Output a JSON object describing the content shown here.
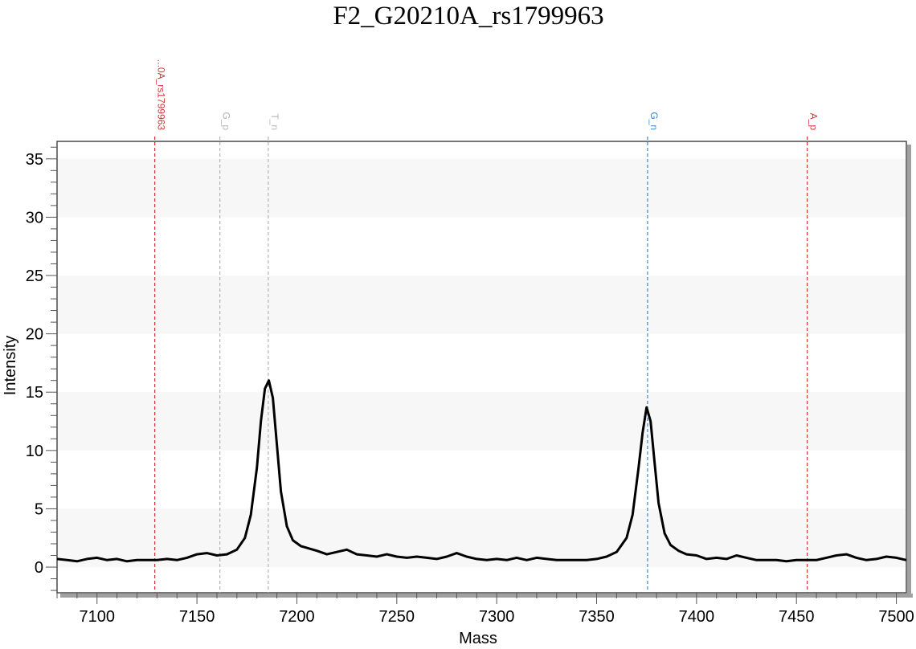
{
  "chart_data": {
    "type": "line",
    "title": "F2_G20210A_rs1799963",
    "xlabel": "Mass",
    "ylabel": "Intensity",
    "xlim": [
      7080,
      7505
    ],
    "ylim": [
      -2.2,
      36.5
    ],
    "x_ticks": [
      7100,
      7150,
      7200,
      7250,
      7300,
      7350,
      7400,
      7450,
      7500
    ],
    "y_ticks": [
      0,
      5,
      10,
      15,
      20,
      25,
      30,
      35
    ],
    "band_shading": true,
    "series": [
      {
        "color": "#000000",
        "x": [
          7080,
          7085,
          7090,
          7095,
          7100,
          7105,
          7110,
          7115,
          7120,
          7125,
          7130,
          7135,
          7140,
          7145,
          7150,
          7155,
          7160,
          7165,
          7170,
          7174,
          7177,
          7180,
          7182,
          7184,
          7186,
          7188,
          7190,
          7192,
          7195,
          7198,
          7202,
          7206,
          7210,
          7215,
          7220,
          7225,
          7230,
          7235,
          7240,
          7245,
          7250,
          7255,
          7260,
          7265,
          7270,
          7275,
          7280,
          7285,
          7290,
          7295,
          7300,
          7305,
          7310,
          7315,
          7320,
          7325,
          7330,
          7335,
          7340,
          7345,
          7350,
          7355,
          7360,
          7365,
          7368,
          7371,
          7373,
          7375,
          7377,
          7379,
          7381,
          7384,
          7387,
          7391,
          7395,
          7400,
          7405,
          7410,
          7415,
          7420,
          7425,
          7430,
          7435,
          7440,
          7445,
          7450,
          7455,
          7460,
          7465,
          7470,
          7475,
          7480,
          7485,
          7490,
          7495,
          7500,
          7505
        ],
        "y": [
          0.7,
          0.6,
          0.5,
          0.7,
          0.8,
          0.6,
          0.7,
          0.5,
          0.6,
          0.6,
          0.6,
          0.7,
          0.6,
          0.8,
          1.1,
          1.2,
          1.0,
          1.1,
          1.5,
          2.5,
          4.5,
          8.5,
          12.5,
          15.3,
          16.0,
          14.5,
          10.5,
          6.5,
          3.5,
          2.3,
          1.8,
          1.6,
          1.4,
          1.1,
          1.3,
          1.5,
          1.1,
          1.0,
          0.9,
          1.1,
          0.9,
          0.8,
          0.9,
          0.8,
          0.7,
          0.9,
          1.2,
          0.9,
          0.7,
          0.6,
          0.7,
          0.6,
          0.8,
          0.6,
          0.8,
          0.7,
          0.6,
          0.6,
          0.6,
          0.6,
          0.7,
          0.9,
          1.3,
          2.5,
          4.5,
          8.5,
          11.5,
          13.7,
          12.5,
          9.0,
          5.5,
          2.9,
          1.9,
          1.4,
          1.1,
          1.0,
          0.7,
          0.8,
          0.7,
          1.0,
          0.8,
          0.6,
          0.6,
          0.6,
          0.5,
          0.6,
          0.6,
          0.6,
          0.8,
          1.0,
          1.1,
          0.8,
          0.6,
          0.7,
          0.9,
          0.8,
          0.6
        ]
      }
    ],
    "markers": [
      {
        "x": 7128.9,
        "label": "...0A_rs1799963",
        "color": "#d03434"
      },
      {
        "x": 7161.5,
        "label": "G_p",
        "color": "#b4b4b4"
      },
      {
        "x": 7185.7,
        "label": "T_n",
        "color": "#b4b4b4"
      },
      {
        "x": 7375.5,
        "label": "G_n",
        "color": "#3a86c8"
      },
      {
        "x": 7455.4,
        "label": "A_p",
        "color": "#d03434"
      }
    ]
  }
}
